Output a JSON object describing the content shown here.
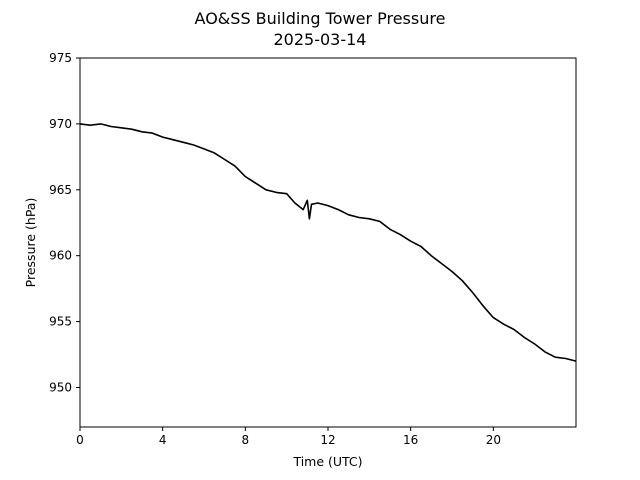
{
  "chart_data": {
    "type": "line",
    "title": "AO&SS Building Tower Pressure",
    "subtitle": "2025-03-14",
    "xlabel": "Time (UTC)",
    "ylabel": "Pressure (hPa)",
    "xlim": [
      0,
      24
    ],
    "ylim": [
      947,
      975
    ],
    "xticks": [
      0,
      4,
      8,
      12,
      16,
      20
    ],
    "yticks": [
      950,
      955,
      960,
      965,
      970,
      975
    ],
    "grid": false,
    "legend": "none",
    "line_color": "#000000",
    "series": [
      {
        "x": [
          0,
          0.5,
          1.0,
          1.5,
          2.0,
          2.5,
          3.0,
          3.5,
          4.0,
          4.5,
          5.0,
          5.5,
          6.0,
          6.5,
          7.0,
          7.5,
          8.0,
          8.5,
          9.0,
          9.5,
          10.0,
          10.4,
          10.8,
          11.0,
          11.1,
          11.2,
          11.5,
          12.0,
          12.5,
          13.0,
          13.5,
          14.0,
          14.5,
          15.0,
          15.5,
          16.0,
          16.5,
          17.0,
          17.5,
          18.0,
          18.5,
          19.0,
          19.5,
          20.0,
          20.5,
          21.0,
          21.5,
          22.0,
          22.5,
          23.0,
          23.5,
          24.0
        ],
        "y": [
          970.0,
          969.9,
          970.0,
          969.8,
          969.7,
          969.6,
          969.4,
          969.3,
          969.0,
          968.8,
          968.6,
          968.4,
          968.1,
          967.8,
          967.3,
          966.8,
          966.0,
          965.5,
          965.0,
          964.8,
          964.7,
          964.0,
          963.5,
          964.2,
          962.8,
          963.9,
          964.0,
          963.8,
          963.5,
          963.1,
          962.9,
          962.8,
          962.6,
          962.0,
          961.6,
          961.1,
          960.7,
          960.0,
          959.4,
          958.8,
          958.1,
          957.2,
          956.2,
          955.3,
          954.8,
          954.4,
          953.8,
          953.3,
          952.7,
          952.3,
          952.2,
          952.0
        ]
      }
    ]
  }
}
